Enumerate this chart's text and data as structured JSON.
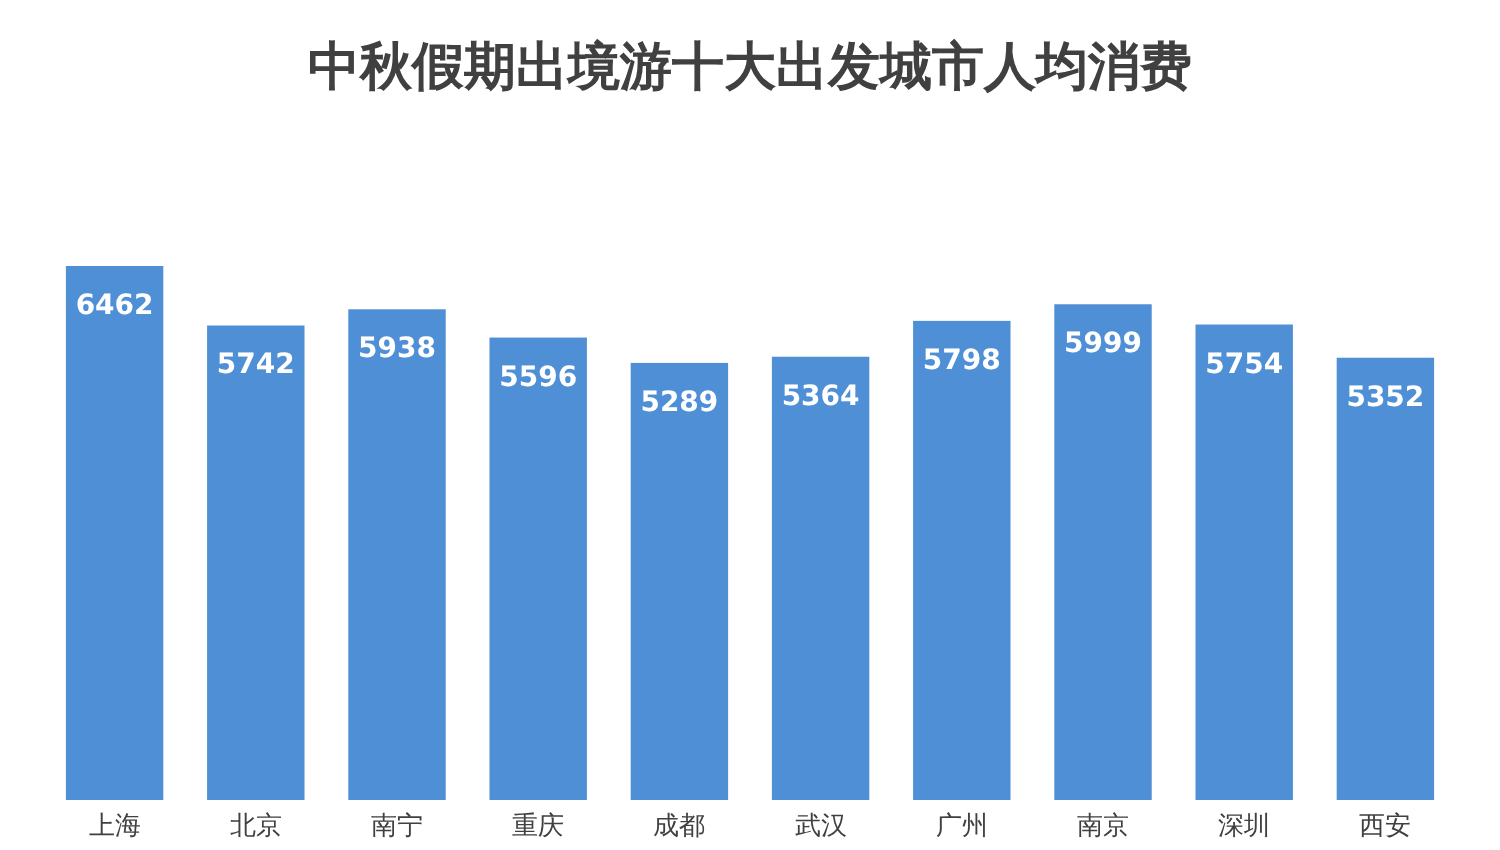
{
  "chart_data": {
    "type": "bar",
    "title": "中秋假期出境游十大出发城市人均消费",
    "categories": [
      "上海",
      "北京",
      "南宁",
      "重庆",
      "成都",
      "武汉",
      "广州",
      "南京",
      "深圳",
      "西安"
    ],
    "values": [
      6462,
      5742,
      5938,
      5596,
      5289,
      5364,
      5798,
      5999,
      5754,
      5352
    ],
    "color": "#4f8fd6",
    "data_labels": true
  }
}
